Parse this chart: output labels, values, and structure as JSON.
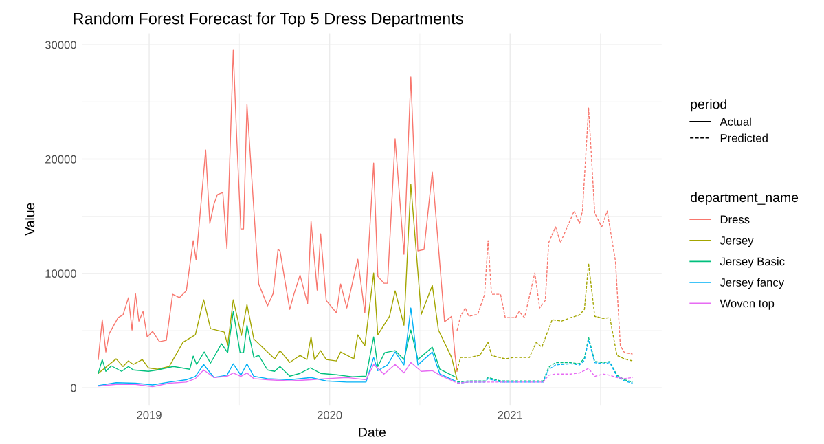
{
  "chart_data": {
    "type": "line",
    "title": "Random Forest Forecast for Top 5 Dress Departments",
    "xlabel": "Date",
    "ylabel": "Value",
    "legend_title": [
      "period",
      "department_name"
    ],
    "annotations": [
      "Actual",
      "Predicted"
    ],
    "xlim": [
      2018.63,
      2021.84
    ],
    "xticks": [
      2019,
      {
        "value": 2019.5,
        "label": null
      },
      2020,
      {
        "value": 2020.5,
        "label": null
      },
      2021,
      {
        "value": 2021.5,
        "label": null
      }
    ],
    "ylim": [
      -1500,
      31000
    ],
    "yticks": [
      0,
      {
        "value": 5000,
        "label": null
      },
      10000,
      {
        "value": 15000,
        "label": null
      },
      20000,
      {
        "value": 25000,
        "label": null
      },
      30000
    ],
    "grid": true,
    "legend": "right",
    "series": [
      {
        "name": "Dress",
        "color": "#f8766d",
        "line_style": "solid",
        "x": [
          2018.718,
          2018.74,
          2018.76,
          2018.779,
          2018.828,
          2018.855,
          2018.885,
          2018.905,
          2018.924,
          2018.943,
          2018.966,
          2018.989,
          2019.019,
          2019.057,
          2019.095,
          2019.13,
          2019.168,
          2019.206,
          2019.244,
          2019.26,
          2019.313,
          2019.336,
          2019.359,
          2019.378,
          2019.408,
          2019.431,
          2019.466,
          2019.485,
          2019.508,
          2019.523,
          2019.542,
          2019.607,
          2019.656,
          2019.687,
          2019.714,
          2019.725,
          2019.779,
          2019.802,
          2019.836,
          2019.878,
          2019.897,
          2019.931,
          2019.95,
          2019.981,
          2020.038,
          2020.061,
          2020.095,
          2020.156,
          2020.195,
          2020.244,
          2020.267,
          2020.301,
          2020.321,
          2020.363,
          2020.412,
          2020.45,
          2020.489,
          2020.523,
          2020.569,
          2020.637,
          2020.676,
          2020.695,
          2020.706
        ],
        "values": [
          2470,
          5950,
          3130,
          4750,
          6130,
          6370,
          7880,
          5050,
          8240,
          5830,
          6670,
          4450,
          4930,
          4030,
          4150,
          8180,
          7880,
          8480,
          12870,
          11180,
          20800,
          14370,
          16060,
          16900,
          17080,
          12150,
          29520,
          21890,
          13890,
          13890,
          24770,
          9080,
          7160,
          8240,
          12090,
          11970,
          6860,
          8180,
          9860,
          7340,
          14550,
          8540,
          13470,
          7640,
          6550,
          9080,
          6980,
          11240,
          6550,
          19660,
          9740,
          9140,
          9140,
          21770,
          11670,
          27180,
          11970,
          12090,
          18880,
          5770,
          6250,
          2830,
          1440
        ]
      },
      {
        "name": "Jersey",
        "color": "#a3a500",
        "line_style": "solid",
        "x": [
          2018.718,
          2018.817,
          2018.855,
          2018.885,
          2018.912,
          2018.962,
          2018.996,
          2019.046,
          2019.111,
          2019.187,
          2019.256,
          2019.302,
          2019.34,
          2019.416,
          2019.435,
          2019.466,
          2019.511,
          2019.542,
          2019.58,
          2019.695,
          2019.725,
          2019.779,
          2019.836,
          2019.874,
          2019.897,
          2019.916,
          2019.95,
          2019.981,
          2020.038,
          2020.061,
          2020.134,
          2020.156,
          2020.195,
          2020.244,
          2020.267,
          2020.332,
          2020.363,
          2020.412,
          2020.45,
          2020.508,
          2020.569,
          2020.603,
          2020.676,
          2020.695,
          2020.706
        ],
        "values": [
          1260,
          2530,
          1860,
          2350,
          2040,
          2470,
          1740,
          1620,
          1860,
          3970,
          4630,
          7700,
          5170,
          4870,
          3730,
          7700,
          4570,
          7280,
          4270,
          2530,
          3250,
          2220,
          2830,
          2470,
          4450,
          2470,
          3250,
          2470,
          2350,
          3130,
          2530,
          4630,
          3670,
          10040,
          4630,
          6250,
          8480,
          5470,
          17800,
          6430,
          8960,
          5050,
          2650,
          1440,
          720
        ]
      },
      {
        "name": "Jersey Basic",
        "color": "#00bf7d",
        "line_style": "solid",
        "x": [
          2018.718,
          2018.74,
          2018.76,
          2018.79,
          2018.847,
          2018.885,
          2018.912,
          2018.996,
          2019.046,
          2019.134,
          2019.225,
          2019.244,
          2019.263,
          2019.305,
          2019.34,
          2019.401,
          2019.435,
          2019.466,
          2019.504,
          2019.523,
          2019.542,
          2019.58,
          2019.607,
          2019.656,
          2019.695,
          2019.725,
          2019.779,
          2019.836,
          2019.893,
          2019.95,
          2020.038,
          2020.126,
          2020.202,
          2020.244,
          2020.267,
          2020.305,
          2020.363,
          2020.412,
          2020.45,
          2020.489,
          2020.569,
          2020.611,
          2020.695
        ],
        "values": [
          1260,
          2470,
          1440,
          1920,
          1440,
          1860,
          1560,
          1440,
          1560,
          1860,
          1620,
          2770,
          2040,
          3130,
          2160,
          3850,
          3070,
          6670,
          3070,
          3070,
          5470,
          2650,
          2830,
          1560,
          1440,
          1860,
          1020,
          1260,
          1740,
          1260,
          1140,
          960,
          1020,
          4450,
          1860,
          3070,
          3250,
          2470,
          5050,
          2470,
          3550,
          1620,
          960
        ]
      },
      {
        "name": "Jersey fancy",
        "color": "#00b0f6",
        "line_style": "solid",
        "x": [
          2018.718,
          2018.817,
          2018.924,
          2019.019,
          2019.111,
          2019.206,
          2019.256,
          2019.302,
          2019.359,
          2019.431,
          2019.466,
          2019.508,
          2019.542,
          2019.58,
          2019.656,
          2019.779,
          2019.897,
          2019.981,
          2020.095,
          2020.202,
          2020.244,
          2020.267,
          2020.321,
          2020.363,
          2020.412,
          2020.45,
          2020.489,
          2020.569,
          2020.611,
          2020.695
        ],
        "values": [
          200,
          450,
          400,
          250,
          500,
          700,
          1000,
          2040,
          900,
          1100,
          2100,
          1100,
          2100,
          1000,
          800,
          700,
          900,
          600,
          500,
          500,
          2650,
          1500,
          2000,
          3130,
          2000,
          6980,
          2000,
          3130,
          1200,
          600
        ]
      },
      {
        "name": "Woven top",
        "color": "#e76bf3",
        "line_style": "solid",
        "x": [
          2018.718,
          2018.817,
          2018.924,
          2019.019,
          2019.111,
          2019.206,
          2019.256,
          2019.302,
          2019.359,
          2019.431,
          2019.466,
          2019.508,
          2019.542,
          2019.58,
          2019.656,
          2019.779,
          2019.897,
          2019.981,
          2020.095,
          2020.202,
          2020.244,
          2020.301,
          2020.363,
          2020.412,
          2020.45,
          2020.508,
          2020.569,
          2020.611,
          2020.695
        ],
        "values": [
          150,
          300,
          300,
          100,
          400,
          500,
          800,
          1560,
          900,
          1000,
          1300,
          1000,
          1300,
          800,
          700,
          600,
          700,
          800,
          900,
          700,
          2040,
          1200,
          2040,
          1300,
          2220,
          1440,
          1500,
          1100,
          500
        ]
      },
      {
        "color": "#f8766d",
        "line_style": "dashed",
        "x": [
          2020.706,
          2020.725,
          2020.752,
          2020.771,
          2020.821,
          2020.859,
          2020.878,
          2020.897,
          2020.947,
          2020.973,
          2021.031,
          2021.05,
          2021.08,
          2021.137,
          2021.164,
          2021.195,
          2021.214,
          2021.252,
          2021.279,
          2021.355,
          2021.385,
          2021.401,
          2021.435,
          2021.469,
          2021.508,
          2021.538,
          2021.584,
          2021.611,
          2021.634,
          2021.679
        ],
        "values": [
          5000,
          6250,
          6980,
          6250,
          6430,
          8180,
          12870,
          8180,
          8180,
          6130,
          6130,
          6670,
          6130,
          10040,
          6980,
          7640,
          12690,
          14070,
          12690,
          15450,
          14370,
          15450,
          24470,
          15270,
          14070,
          15450,
          11060,
          3670,
          3070,
          2950
        ]
      },
      {
        "color": "#a3a500",
        "line_style": "dashed",
        "x": [
          2020.706,
          2020.725,
          2020.771,
          2020.832,
          2020.878,
          2020.897,
          2020.973,
          2021.019,
          2021.069,
          2021.107,
          2021.145,
          2021.176,
          2021.233,
          2021.286,
          2021.336,
          2021.385,
          2021.412,
          2021.435,
          2021.469,
          2021.515,
          2021.553,
          2021.592,
          2021.634,
          2021.679
        ],
        "values": [
          1500,
          2650,
          2650,
          2830,
          3970,
          2830,
          2530,
          2650,
          2650,
          2650,
          3970,
          3550,
          5950,
          5830,
          6130,
          6370,
          6860,
          10880,
          6250,
          6070,
          6130,
          2830,
          2530,
          2350
        ]
      },
      {
        "color": "#00bf7d",
        "line_style": "dashed",
        "x": [
          2020.706,
          2020.771,
          2020.859,
          2020.878,
          2020.947,
          2021.031,
          2021.107,
          2021.183,
          2021.214,
          2021.252,
          2021.336,
          2021.385,
          2021.412,
          2021.435,
          2021.469,
          2021.515,
          2021.553,
          2021.592,
          2021.634,
          2021.679
        ],
        "values": [
          500,
          600,
          600,
          900,
          600,
          600,
          600,
          600,
          1800,
          2200,
          2200,
          2100,
          2600,
          4400,
          2300,
          2200,
          2300,
          1100,
          700,
          500
        ]
      },
      {
        "color": "#00b0f6",
        "line_style": "dashed",
        "x": [
          2020.706,
          2020.771,
          2020.859,
          2020.878,
          2020.947,
          2021.031,
          2021.107,
          2021.183,
          2021.214,
          2021.252,
          2021.336,
          2021.385,
          2021.412,
          2021.435,
          2021.469,
          2021.515,
          2021.553,
          2021.592,
          2021.634,
          2021.679
        ],
        "values": [
          400,
          500,
          500,
          800,
          500,
          500,
          500,
          500,
          1600,
          2000,
          2100,
          2000,
          2400,
          4200,
          2200,
          2100,
          2200,
          1000,
          600,
          400
        ]
      },
      {
        "color": "#e76bf3",
        "line_style": "dashed",
        "x": [
          2020.706,
          2020.771,
          2020.859,
          2020.947,
          2021.031,
          2021.107,
          2021.183,
          2021.214,
          2021.252,
          2021.336,
          2021.385,
          2021.435,
          2021.469,
          2021.515,
          2021.553,
          2021.592,
          2021.634,
          2021.679
        ],
        "values": [
          400,
          500,
          500,
          500,
          500,
          500,
          500,
          1100,
          1200,
          1200,
          1300,
          1700,
          1000,
          1200,
          1100,
          900,
          800,
          900
        ]
      }
    ]
  }
}
